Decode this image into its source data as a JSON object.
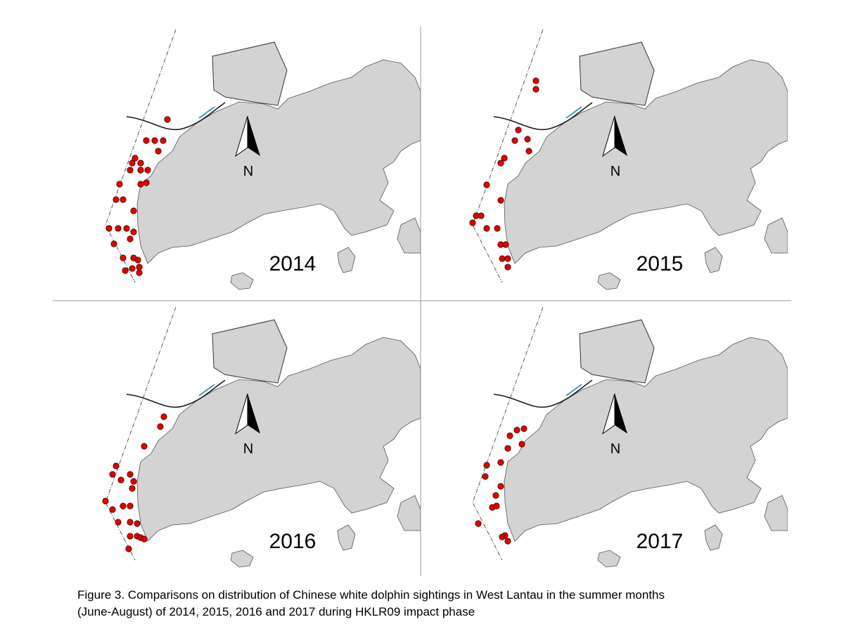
{
  "panels": [
    {
      "year": "2014",
      "north": "N"
    },
    {
      "year": "2015",
      "north": "N"
    },
    {
      "year": "2016",
      "north": "N"
    },
    {
      "year": "2017",
      "north": "N"
    }
  ],
  "caption": {
    "line1": "Figure 3.  Comparisons on distribution of Chinese white dolphin sightings in West Lantau in the summer months",
    "line2": "(June-August) of 2014, 2015, 2016 and 2017 during HKLR09 impact phase"
  }
}
